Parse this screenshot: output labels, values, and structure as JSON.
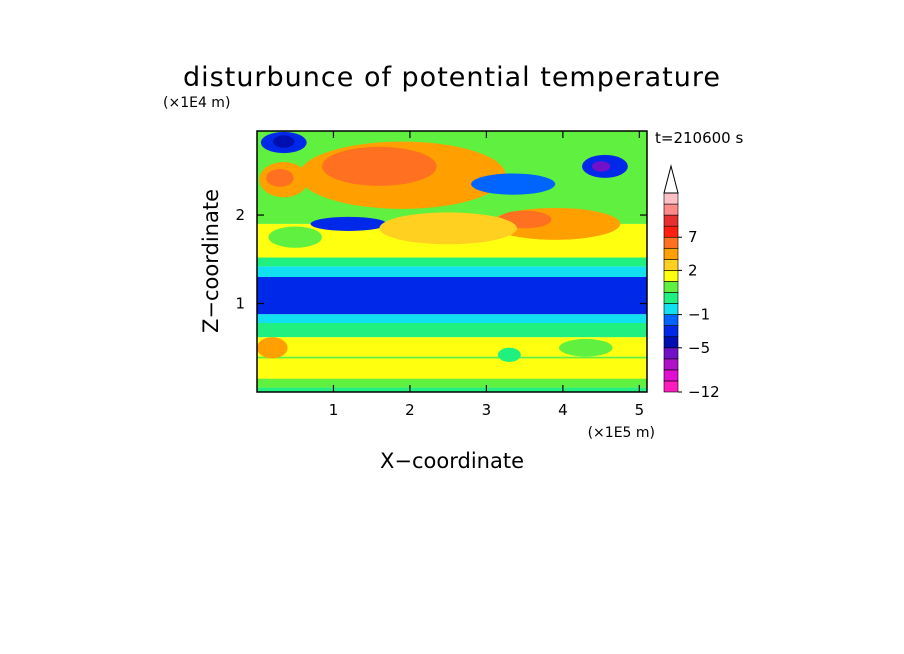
{
  "chart_data": {
    "type": "heatmap",
    "title": "disturbunce of potential temperature",
    "xlabel": "X−coordinate",
    "ylabel": "Z−coordinate",
    "x_unit": "(×1E5 m)",
    "y_unit": "(×1E4 m)",
    "time_label": "t=210600 s",
    "xlim": [
      0,
      5.1
    ],
    "ylim": [
      0,
      2.95
    ],
    "x_ticks": [
      {
        "value": 1,
        "label": "1"
      },
      {
        "value": 2,
        "label": "2"
      },
      {
        "value": 3,
        "label": "3"
      },
      {
        "value": 4,
        "label": "4"
      },
      {
        "value": 5,
        "label": "5"
      }
    ],
    "y_ticks": [
      {
        "value": 1,
        "label": "1"
      },
      {
        "value": 2,
        "label": "2"
      }
    ],
    "colorbar": {
      "levels": [
        {
          "color": "#ff1cbc"
        },
        {
          "color": "#e010d0"
        },
        {
          "color": "#b010c8"
        },
        {
          "color": "#7010c8"
        },
        {
          "color": "#0010b0"
        },
        {
          "color": "#0028e8"
        },
        {
          "color": "#0064ff"
        },
        {
          "color": "#10e0f0"
        },
        {
          "color": "#20f080"
        },
        {
          "color": "#60f040"
        },
        {
          "color": "#ffff10"
        },
        {
          "color": "#ffd020"
        },
        {
          "color": "#ffa000"
        },
        {
          "color": "#ff7020"
        },
        {
          "color": "#ff2010"
        },
        {
          "color": "#e83030"
        },
        {
          "color": "#ff8a8a"
        },
        {
          "color": "#ffc0c8"
        }
      ],
      "labels": [
        "7",
        "2",
        "−1",
        "−5",
        "−12"
      ],
      "extend": "max"
    },
    "bands": [
      {
        "z0": 0.0,
        "z1": 0.05,
        "color": "#20f080"
      },
      {
        "z0": 0.05,
        "z1": 0.4,
        "color": "#60f040"
      },
      {
        "z0": 0.15,
        "z1": 0.38,
        "color": "#ffff10"
      },
      {
        "z0": 0.4,
        "z1": 0.62,
        "color": "#ffff10"
      },
      {
        "z0": 0.62,
        "z1": 0.78,
        "color": "#20f080"
      },
      {
        "z0": 0.78,
        "z1": 0.88,
        "color": "#10e0f0"
      },
      {
        "z0": 0.88,
        "z1": 1.3,
        "color": "#0028e8"
      },
      {
        "z0": 1.3,
        "z1": 1.42,
        "color": "#10e0f0"
      },
      {
        "z0": 1.42,
        "z1": 1.52,
        "color": "#20f080"
      },
      {
        "z0": 1.52,
        "z1": 1.9,
        "color": "#ffff10"
      },
      {
        "z0": 1.9,
        "z1": 2.95,
        "color": "#60f040"
      }
    ],
    "blobs": [
      {
        "x": 1.9,
        "z": 2.45,
        "rx": 1.35,
        "rz": 0.38,
        "color": "#ffa000"
      },
      {
        "x": 1.6,
        "z": 2.55,
        "rx": 0.75,
        "rz": 0.22,
        "color": "#ff7020"
      },
      {
        "x": 0.35,
        "z": 2.4,
        "rx": 0.32,
        "rz": 0.2,
        "color": "#ffa000"
      },
      {
        "x": 0.3,
        "z": 2.42,
        "rx": 0.18,
        "rz": 0.1,
        "color": "#ff7020"
      },
      {
        "x": 0.35,
        "z": 2.82,
        "rx": 0.3,
        "rz": 0.12,
        "color": "#0028e8"
      },
      {
        "x": 0.35,
        "z": 2.83,
        "rx": 0.14,
        "rz": 0.07,
        "color": "#0010b0"
      },
      {
        "x": 4.55,
        "z": 2.55,
        "rx": 0.3,
        "rz": 0.13,
        "color": "#0028e8"
      },
      {
        "x": 4.5,
        "z": 2.55,
        "rx": 0.12,
        "rz": 0.06,
        "color": "#7010c8"
      },
      {
        "x": 3.35,
        "z": 2.35,
        "rx": 0.55,
        "rz": 0.12,
        "color": "#0064ff"
      },
      {
        "x": 1.2,
        "z": 1.9,
        "rx": 0.5,
        "rz": 0.08,
        "color": "#0028e8"
      },
      {
        "x": 3.9,
        "z": 1.9,
        "rx": 0.85,
        "rz": 0.18,
        "color": "#ffa000"
      },
      {
        "x": 3.5,
        "z": 1.95,
        "rx": 0.35,
        "rz": 0.1,
        "color": "#ff7020"
      },
      {
        "x": 2.5,
        "z": 1.85,
        "rx": 0.9,
        "rz": 0.18,
        "color": "#ffd020"
      },
      {
        "x": 0.5,
        "z": 1.75,
        "rx": 0.35,
        "rz": 0.12,
        "color": "#60f040"
      },
      {
        "x": 0.2,
        "z": 0.5,
        "rx": 0.2,
        "rz": 0.12,
        "color": "#ffa000"
      },
      {
        "x": 3.3,
        "z": 0.42,
        "rx": 0.15,
        "rz": 0.08,
        "color": "#20f080"
      },
      {
        "x": 4.3,
        "z": 0.5,
        "rx": 0.35,
        "rz": 0.1,
        "color": "#60f040"
      }
    ]
  }
}
